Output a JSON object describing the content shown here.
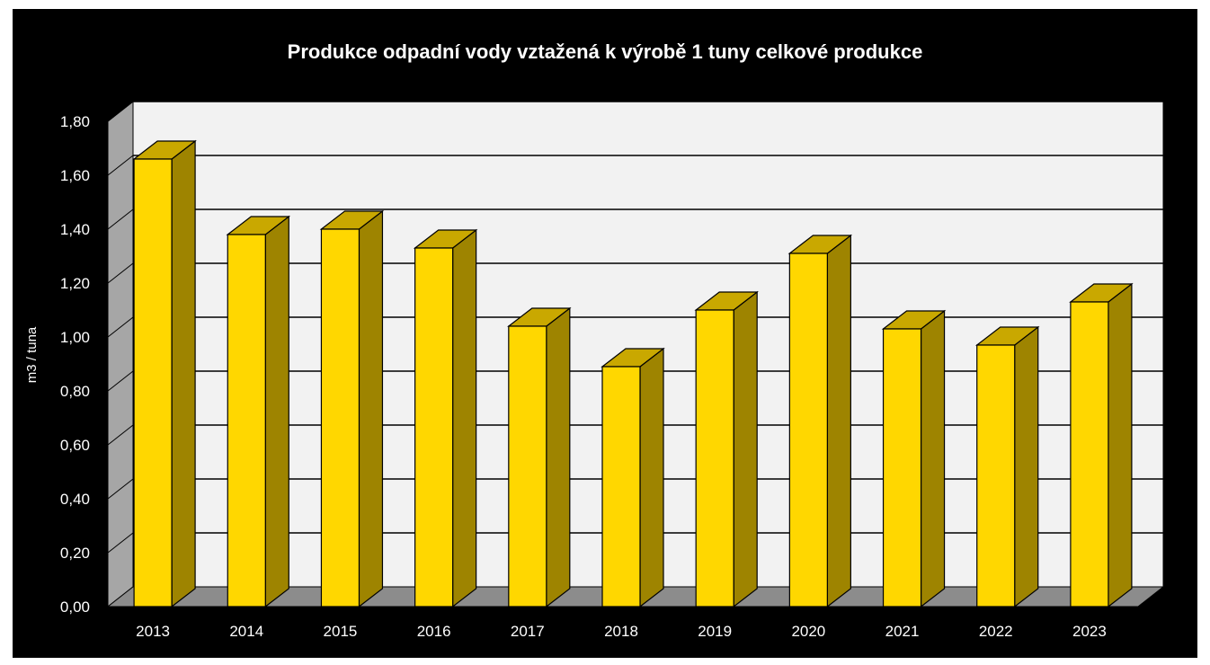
{
  "chart_data": {
    "type": "bar",
    "title": "Produkce odpadní vody vztažená k výrobě 1 tuny celkové produkce",
    "xlabel": "",
    "ylabel": "m3 / tuna",
    "ylim": [
      0,
      1.8
    ],
    "y_ticks": [
      "0,00",
      "0,20",
      "0,40",
      "0,60",
      "0,80",
      "1,00",
      "1,20",
      "1,40",
      "1,60",
      "1,80"
    ],
    "y_tick_values": [
      0,
      0.2,
      0.4,
      0.6,
      0.8,
      1.0,
      1.2,
      1.4,
      1.6,
      1.8
    ],
    "categories": [
      "2013",
      "2014",
      "2015",
      "2016",
      "2017",
      "2018",
      "2019",
      "2020",
      "2021",
      "2022",
      "2023"
    ],
    "values": [
      1.66,
      1.38,
      1.4,
      1.33,
      1.04,
      0.89,
      1.1,
      1.31,
      1.03,
      0.97,
      1.13
    ],
    "grid": true,
    "legend": "none",
    "colors": {
      "background": "#000000",
      "plot_wall": "#f2f2f2",
      "side_wall": "#a6a6a6",
      "floor": "#8c8c8c",
      "bar_front": "#ffd700",
      "bar_top": "#c9a800",
      "bar_side": "#9e8400",
      "gridline": "#000000",
      "text": "#ffffff"
    }
  }
}
